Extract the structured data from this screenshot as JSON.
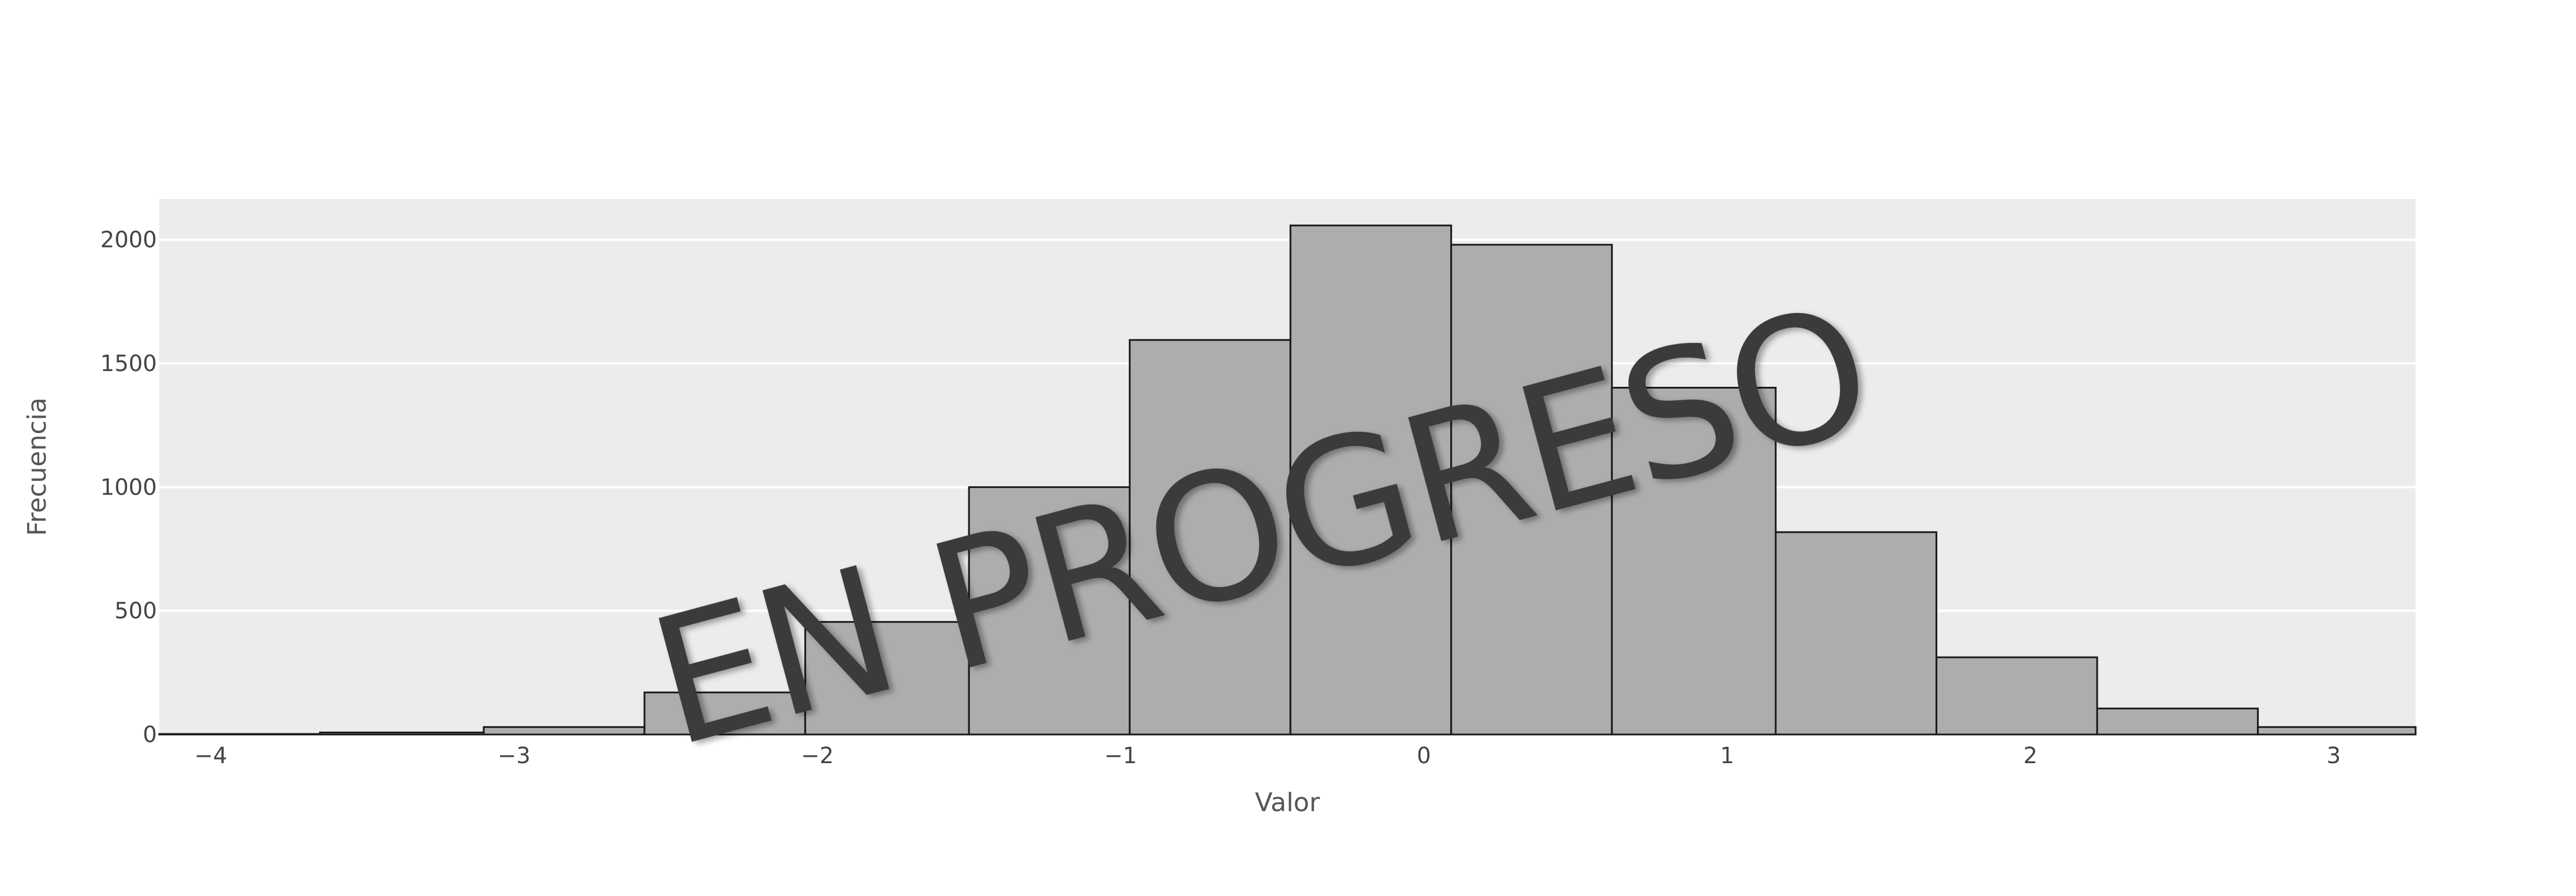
{
  "chart_data": {
    "type": "bar",
    "title": "",
    "xlabel": "Valor",
    "ylabel": "Frecuencia",
    "xlim": [
      -4.17,
      3.27
    ],
    "ylim": [
      0,
      2165
    ],
    "xticks": [
      -4,
      -3,
      -2,
      -1,
      0,
      1,
      2,
      3
    ],
    "xtick_labels": [
      "−4",
      "−3",
      "−2",
      "−1",
      "0",
      "1",
      "2",
      "3"
    ],
    "yticks": [
      0,
      500,
      1000,
      1500,
      2000
    ],
    "ytick_labels": [
      "0",
      "500",
      "1000",
      "1500",
      "2000"
    ],
    "bin_edges": [
      -4.17,
      -3.64,
      -3.1,
      -2.57,
      -2.04,
      -1.5,
      -0.97,
      -0.44,
      0.09,
      0.62,
      1.16,
      1.69,
      2.22,
      2.75,
      3.29
    ],
    "values": [
      2,
      8,
      30,
      170,
      455,
      1000,
      1595,
      2058,
      1980,
      1402,
      818,
      312,
      105,
      30
    ],
    "grid": true,
    "legend": "none",
    "colors": {
      "plot_background": "#ececec",
      "bar_fill": "#adadad",
      "bar_edge": "#1a1a1a",
      "grid": "#ffffff",
      "watermark": "#3a3a3a"
    },
    "watermark": "EN PROGRESO"
  }
}
